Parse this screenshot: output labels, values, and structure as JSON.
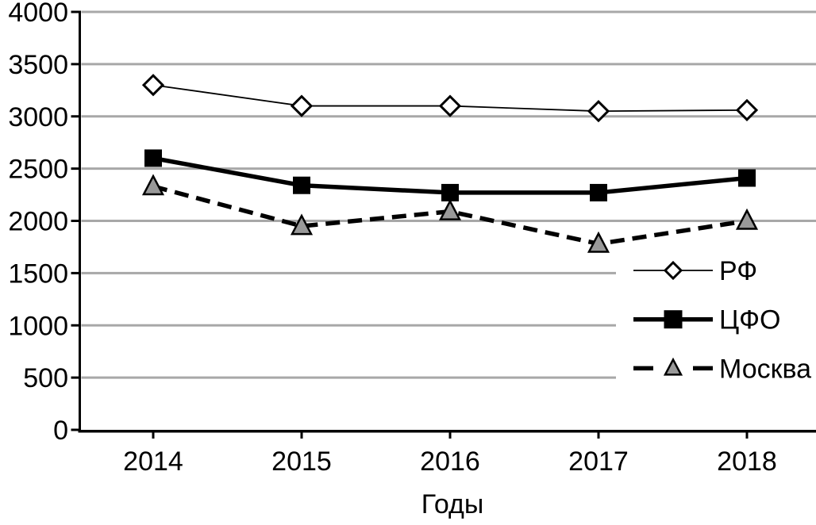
{
  "chart_data": {
    "type": "line",
    "title": "",
    "xlabel": "Годы",
    "ylabel": "",
    "categories": [
      "2014",
      "2015",
      "2016",
      "2017",
      "2018"
    ],
    "series": [
      {
        "name": "РФ",
        "values": [
          3300,
          3100,
          3100,
          3050,
          3060
        ],
        "marker": "diamond",
        "line_style": "thin-solid"
      },
      {
        "name": "ЦФО",
        "values": [
          2600,
          2340,
          2270,
          2270,
          2410
        ],
        "marker": "square",
        "line_style": "thick-solid"
      },
      {
        "name": "Москва",
        "values": [
          2330,
          1950,
          2090,
          1780,
          2000
        ],
        "marker": "triangle",
        "line_style": "thick-dashed"
      }
    ],
    "ylim": [
      0,
      4000
    ],
    "ytick_step": 500,
    "yticks": [
      "0",
      "500",
      "1000",
      "1500",
      "2000",
      "2500",
      "3000",
      "3500",
      "4000"
    ],
    "grid": "horizontal-only",
    "legend_position": "right-middle-overlay",
    "legend_labels": [
      "РФ",
      "ЦФО",
      "Москва"
    ]
  },
  "colors": {
    "background": "#ffffff",
    "axis": "#000000",
    "gridline": "#a8a8a8",
    "text": "#000000",
    "series_stroke": "#000000",
    "diamond_fill": "#ffffff",
    "square_fill": "#000000",
    "triangle_fill": "#999999",
    "legend_background": "#ffffff"
  }
}
